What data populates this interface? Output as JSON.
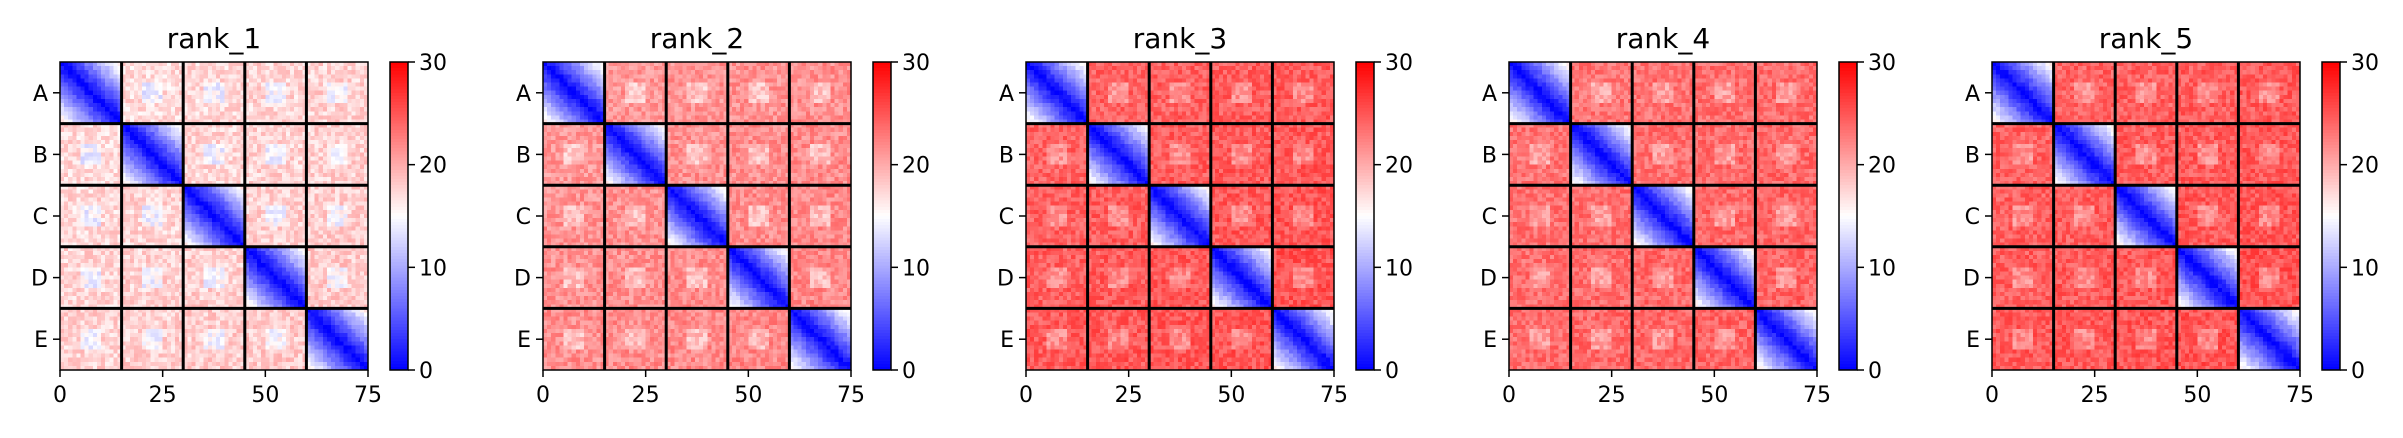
{
  "chart_data": [
    {
      "type": "heatmap",
      "title": "rank_1",
      "x_ticks": [
        0,
        25,
        50,
        75
      ],
      "y_tick_labels": [
        "A",
        "B",
        "C",
        "D",
        "E"
      ],
      "block_size": 15,
      "n": 75,
      "diagonal_value": 0,
      "offdiag_level": 17,
      "colorbar": {
        "vmin": 0,
        "vmax": 30,
        "ticks": [
          0,
          10,
          20,
          30
        ],
        "colormap": "bwr"
      }
    },
    {
      "type": "heatmap",
      "title": "rank_2",
      "x_ticks": [
        0,
        25,
        50,
        75
      ],
      "y_tick_labels": [
        "A",
        "B",
        "C",
        "D",
        "E"
      ],
      "block_size": 15,
      "n": 75,
      "diagonal_value": 0,
      "offdiag_level": 21,
      "colorbar": {
        "vmin": 0,
        "vmax": 30,
        "ticks": [
          0,
          10,
          20,
          30
        ],
        "colormap": "bwr"
      }
    },
    {
      "type": "heatmap",
      "title": "rank_3",
      "x_ticks": [
        0,
        25,
        50,
        75
      ],
      "y_tick_labels": [
        "A",
        "B",
        "C",
        "D",
        "E"
      ],
      "block_size": 15,
      "n": 75,
      "diagonal_value": 0,
      "offdiag_level": 24,
      "colorbar": {
        "vmin": 0,
        "vmax": 30,
        "ticks": [
          0,
          10,
          20,
          30
        ],
        "colormap": "bwr"
      }
    },
    {
      "type": "heatmap",
      "title": "rank_4",
      "x_ticks": [
        0,
        25,
        50,
        75
      ],
      "y_tick_labels": [
        "A",
        "B",
        "C",
        "D",
        "E"
      ],
      "block_size": 15,
      "n": 75,
      "diagonal_value": 0,
      "offdiag_level": 23,
      "colorbar": {
        "vmin": 0,
        "vmax": 30,
        "ticks": [
          0,
          10,
          20,
          30
        ],
        "colormap": "bwr"
      }
    },
    {
      "type": "heatmap",
      "title": "rank_5",
      "x_ticks": [
        0,
        25,
        50,
        75
      ],
      "y_tick_labels": [
        "A",
        "B",
        "C",
        "D",
        "E"
      ],
      "block_size": 15,
      "n": 75,
      "diagonal_value": 0,
      "offdiag_level": 24,
      "colorbar": {
        "vmin": 0,
        "vmax": 30,
        "ticks": [
          0,
          10,
          20,
          30
        ],
        "colormap": "bwr"
      }
    }
  ]
}
